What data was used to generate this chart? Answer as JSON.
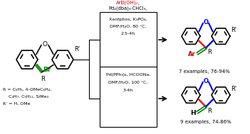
{
  "bg_color": "#ffffff",
  "reagents1_line1": "ArB(OH)₂,",
  "reagents1_line2": "Pd₂(dba)₃·CHCl₃,",
  "reagents1_box1": "Xantphos, K₃PO₄,",
  "reagents1_box2": "DMF/H₂O, 80 °C,",
  "reagents1_box3": "2.5-4h",
  "reagents2_box1": "Pd(PPh₃)₄, HCOONa,",
  "reagents2_box2": "DMF/H₂O, 100 °C,",
  "reagents2_box3": "3-4h",
  "r_line1": "R = C₆H₅, 4-OMeC₆H₄,",
  "r_line2": "    C₃H₇, C₅H₁₁, SiMe₃",
  "r_line3": "R’ = H, OMe",
  "product1_label": "7 examples, 76-94%",
  "product2_label": "9 examples, 74-86%",
  "color_blue": "#0000ff",
  "color_red": "#ff0000",
  "color_green": "#008000",
  "color_black": "#000000",
  "color_ar_red": "#cc0000",
  "color_reagent1": "#cc0000",
  "lw": 1.2
}
